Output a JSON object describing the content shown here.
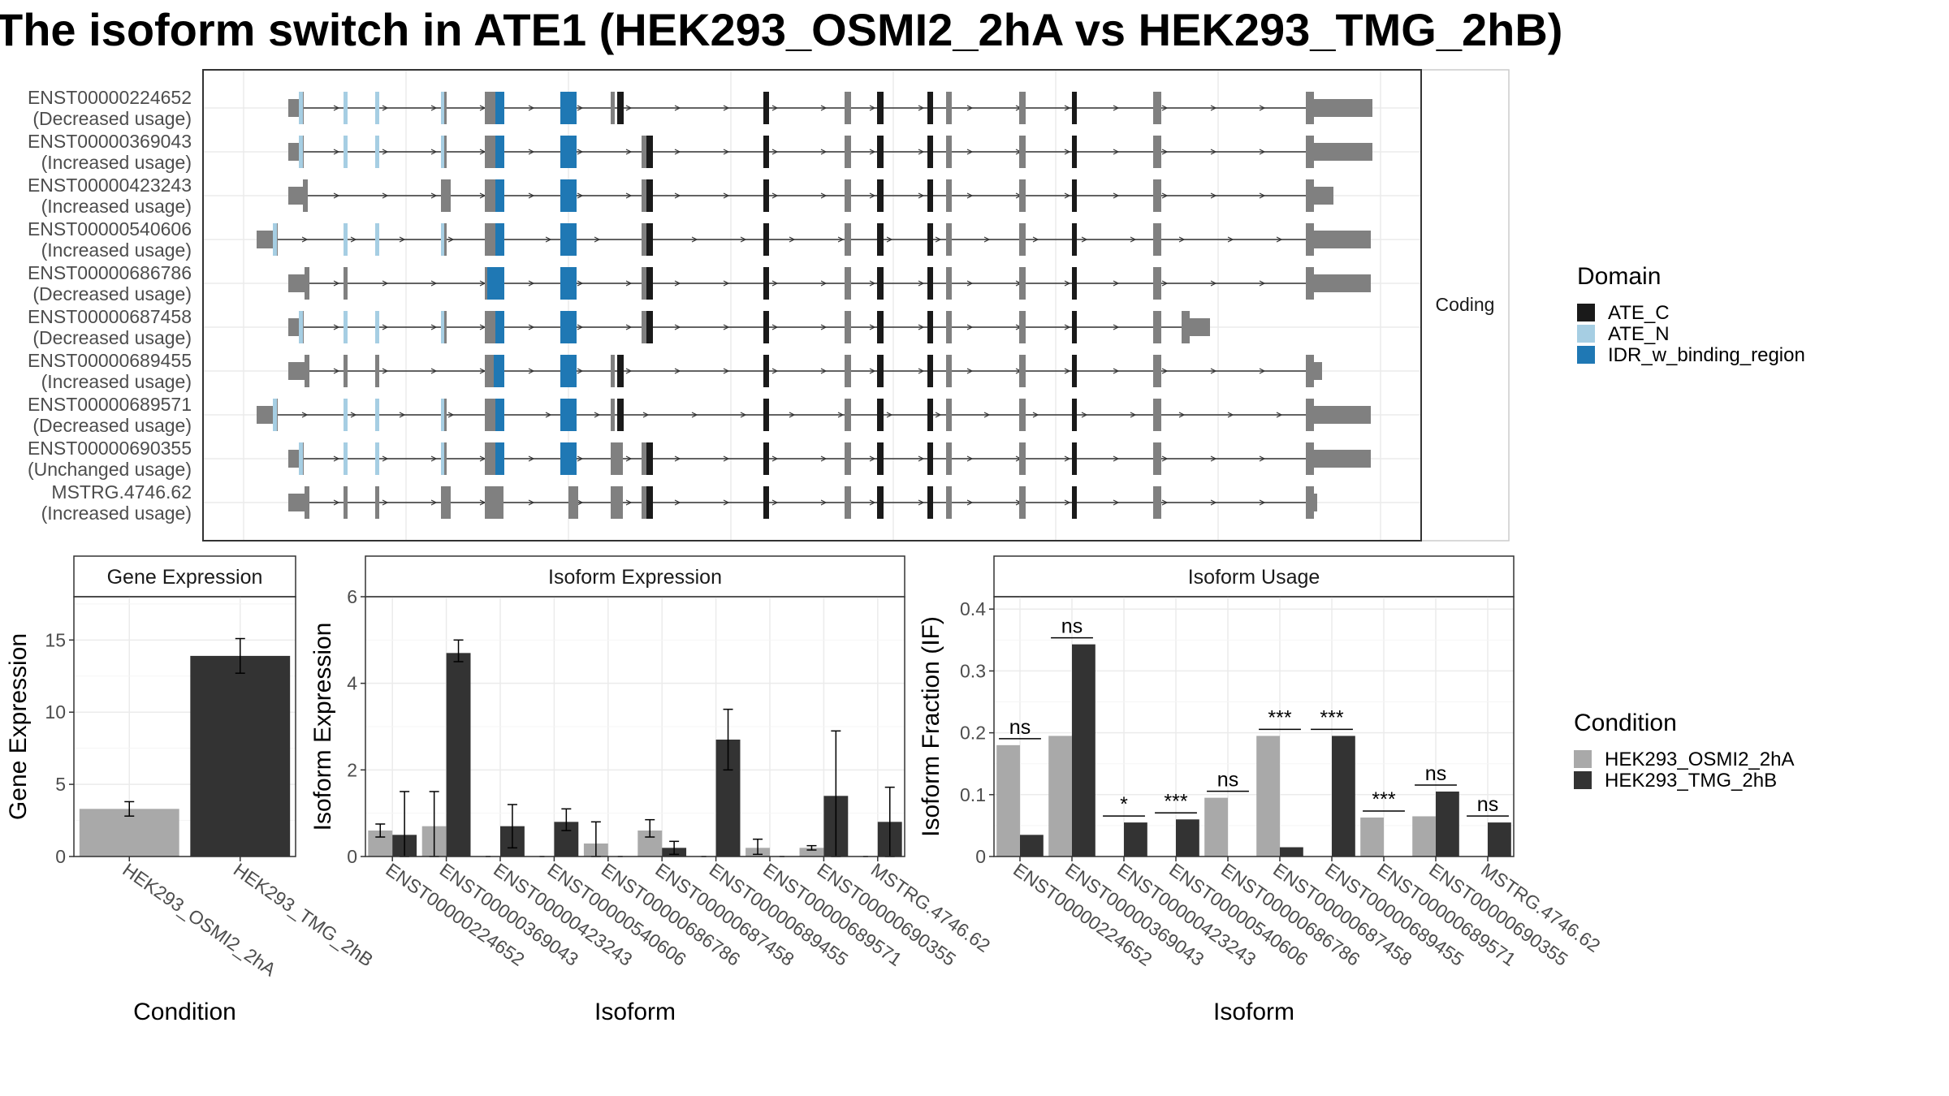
{
  "title": "The isoform switch in ATE1 (HEK293_OSMI2_2hA vs HEK293_TMG_2hB)",
  "colors": {
    "ATE_C": "#1a1a1a",
    "ATE_N": "#a6cee3",
    "IDR_w_binding_region": "#1f78b4",
    "utr": "#808080",
    "HEK293_OSMI2_2hA": "#a9a9a9",
    "HEK293_TMG_2hB": "#333333"
  },
  "structure": {
    "strip_label": "Coding",
    "transcripts": [
      {
        "id": "ENST00000224652",
        "usage": "(Decreased usage)"
      },
      {
        "id": "ENST00000369043",
        "usage": "(Increased usage)"
      },
      {
        "id": "ENST00000423243",
        "usage": "(Increased usage)"
      },
      {
        "id": "ENST00000540606",
        "usage": "(Increased usage)"
      },
      {
        "id": "ENST00000686786",
        "usage": "(Decreased usage)"
      },
      {
        "id": "ENST00000687458",
        "usage": "(Decreased usage)"
      },
      {
        "id": "ENST00000689455",
        "usage": "(Increased usage)"
      },
      {
        "id": "ENST00000689571",
        "usage": "(Decreased usage)"
      },
      {
        "id": "ENST00000690355",
        "usage": "(Unchanged usage)"
      },
      {
        "id": "MSTRG.4746.62",
        "usage": "(Increased usage)"
      }
    ]
  },
  "legend_domain": {
    "title": "Domain",
    "items": [
      {
        "label": "ATE_C",
        "color": "#1a1a1a"
      },
      {
        "label": "ATE_N",
        "color": "#a6cee3"
      },
      {
        "label": "IDR_w_binding_region",
        "color": "#1f78b4"
      }
    ]
  },
  "legend_condition": {
    "title": "Condition",
    "items": [
      {
        "label": "HEK293_OSMI2_2hA",
        "color": "#a9a9a9"
      },
      {
        "label": "HEK293_TMG_2hB",
        "color": "#333333"
      }
    ]
  },
  "chart_data": [
    {
      "type": "bar",
      "title": "Gene Expression",
      "xlabel": "Condition",
      "ylabel": "Gene Expression",
      "ylim": [
        0,
        18
      ],
      "yticks": [
        0,
        5,
        10,
        15
      ],
      "categories": [
        "HEK293_OSMI2_2hA",
        "HEK293_TMG_2hB"
      ],
      "values": [
        3.3,
        13.9
      ],
      "errors": [
        [
          2.8,
          3.8
        ],
        [
          12.7,
          15.1
        ]
      ]
    },
    {
      "type": "bar",
      "title": "Isoform Expression",
      "xlabel": "Isoform",
      "ylabel": "Isoform Expression",
      "ylim": [
        0,
        6
      ],
      "yticks": [
        0,
        2,
        4,
        6
      ],
      "categories": [
        "ENST00000224652",
        "ENST00000369043",
        "ENST00000423243",
        "ENST00000540606",
        "ENST00000686786",
        "ENST00000687458",
        "ENST00000689455",
        "ENST00000689571",
        "ENST00000690355",
        "MSTRG.4746.62"
      ],
      "series": [
        {
          "name": "HEK293_OSMI2_2hA",
          "values": [
            0.6,
            0.7,
            0,
            0,
            0.3,
            0.6,
            0,
            0.2,
            0.2,
            0
          ],
          "errors": [
            [
              0.45,
              0.75
            ],
            [
              0,
              1.5
            ],
            null,
            null,
            [
              0,
              0.8
            ],
            [
              0.45,
              0.85
            ],
            null,
            [
              0.05,
              0.4
            ],
            [
              0.15,
              0.25
            ],
            null
          ]
        },
        {
          "name": "HEK293_TMG_2hB",
          "values": [
            0.5,
            4.7,
            0.7,
            0.8,
            0,
            0.2,
            2.7,
            0,
            1.4,
            0.8
          ],
          "errors": [
            [
              0,
              1.5
            ],
            [
              4.5,
              5.0
            ],
            [
              0.2,
              1.2
            ],
            [
              0.6,
              1.1
            ],
            null,
            [
              0.05,
              0.35
            ],
            [
              2.0,
              3.4
            ],
            null,
            [
              0,
              2.9
            ],
            [
              0,
              1.6
            ]
          ]
        }
      ]
    },
    {
      "type": "bar",
      "title": "Isoform Usage",
      "xlabel": "Isoform",
      "ylabel": "Isoform Fraction (IF)",
      "ylim": [
        0,
        0.42
      ],
      "yticks": [
        0,
        0.1,
        0.2,
        0.3,
        0.4
      ],
      "categories": [
        "ENST00000224652",
        "ENST00000369043",
        "ENST00000423243",
        "ENST00000540606",
        "ENST00000686786",
        "ENST00000687458",
        "ENST00000689455",
        "ENST00000689571",
        "ENST00000690355",
        "MSTRG.4746.62"
      ],
      "series": [
        {
          "name": "HEK293_OSMI2_2hA",
          "values": [
            0.18,
            0.195,
            0,
            0,
            0.095,
            0.195,
            0,
            0.063,
            0.065,
            0
          ]
        },
        {
          "name": "HEK293_TMG_2hB",
          "values": [
            0.035,
            0.343,
            0.055,
            0.06,
            0,
            0.015,
            0.195,
            0,
            0.105,
            0.055
          ]
        }
      ],
      "significance": [
        "ns",
        "ns",
        "*",
        "***",
        "ns",
        "***",
        "***",
        "***",
        "ns",
        "ns"
      ]
    }
  ]
}
